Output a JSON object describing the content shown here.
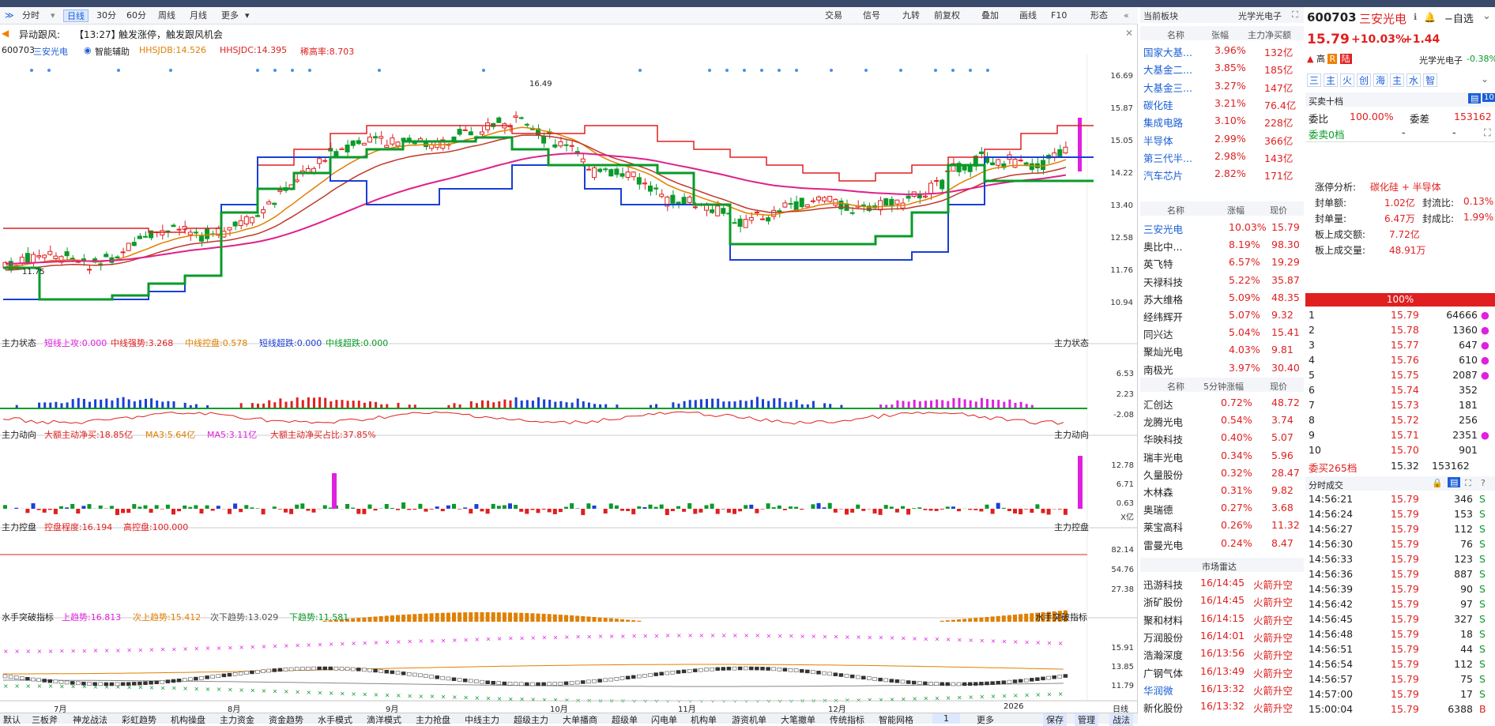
{
  "toolbar": {
    "left_items": [
      "分时",
      "日线",
      "30分",
      "60分",
      "周线",
      "月线",
      "更多"
    ],
    "active_item": "日线",
    "right_items": [
      "交易",
      "信号",
      "九转",
      "前复权",
      "叠加",
      "画线",
      "F10",
      "形态"
    ]
  },
  "alert": {
    "label": "异动跟风:",
    "time": "【13:27】",
    "text": "触发涨停，触发跟风机会"
  },
  "main_legend": {
    "code": "600703",
    "name": "三安光电",
    "assist": "智能辅助",
    "hhsjdb": "HHSJDB:14.526",
    "hhsjdc": "HHSJDC:14.395",
    "yushang": "稀高率:8.703"
  },
  "price_axis": [
    "16.69",
    "15.87",
    "15.05",
    "14.22",
    "13.40",
    "12.58",
    "11.76",
    "10.94"
  ],
  "price_marks": {
    "high": "16.49",
    "low": "11.75"
  },
  "panel_zhuli_state": {
    "title": "主力状态",
    "items": [
      "短线上攻:0.000",
      "中线强势:3.268",
      "中线控盘:0.578",
      "短线超跌:0.000",
      "中线超跌:0.000"
    ],
    "right": "主力状态",
    "axis": [
      "6.53",
      "2.23",
      "-2.08"
    ]
  },
  "panel_zhuli_dongxiang": {
    "title": "主力动向",
    "items": [
      "大额主动净买:18.85亿",
      "MA3:5.64亿",
      "MA5:3.11亿",
      "大额主动净买占比:37.85%"
    ],
    "right": "主力动向",
    "axis": [
      "12.78",
      "6.71",
      "0.63"
    ],
    "unit": "X亿"
  },
  "panel_zhuli_kongpan": {
    "title": "主力控盘",
    "items": [
      "控盘程度:16.194",
      "高控盘:100.000"
    ],
    "right": "主力控盘",
    "axis": [
      "82.14",
      "54.76",
      "27.38"
    ]
  },
  "panel_shuishou": {
    "title": "水手突破指标",
    "items": [
      "上趋势:16.813",
      "次上趋势:15.412",
      "次下趋势:13.029",
      "下趋势:11.581"
    ],
    "right": "水手突破指标",
    "axis": [
      "15.91",
      "13.85",
      "11.79"
    ]
  },
  "x_axis": [
    "7月",
    "8月",
    "9月",
    "10月",
    "11月",
    "12月",
    "2026"
  ],
  "x_right": "日线",
  "bottom_tabs": [
    "默认",
    "三板斧",
    "神龙战法",
    "彩虹趋势",
    "机构操盘",
    "主力资金",
    "资金趋势",
    "水手模式",
    "滴洋模式",
    "主力抢盘",
    "中线主力",
    "超级主力",
    "大单播商",
    "超级单",
    "闪电单",
    "机构单",
    "游资机单",
    "大笔撤单",
    "传统指标",
    "智能网格",
    "1",
    "更多",
    "保存",
    "管理",
    "战法"
  ],
  "sector": {
    "title": "当前板块",
    "current": "光学光电子",
    "headers": [
      "名称",
      "张幅",
      "主力净买额"
    ],
    "rows": [
      {
        "name": "国家大基...",
        "pct": "3.96%",
        "amt": "132亿"
      },
      {
        "name": "大基金二...",
        "pct": "3.85%",
        "amt": "185亿"
      },
      {
        "name": "大基金三...",
        "pct": "3.27%",
        "amt": "147亿"
      },
      {
        "name": "碳化硅",
        "pct": "3.21%",
        "amt": "76.4亿"
      },
      {
        "name": "集成电路",
        "pct": "3.10%",
        "amt": "228亿"
      },
      {
        "name": "半导体",
        "pct": "2.99%",
        "amt": "366亿"
      },
      {
        "name": "第三代半...",
        "pct": "2.98%",
        "amt": "143亿"
      },
      {
        "name": "汽车芯片",
        "pct": "2.82%",
        "amt": "171亿"
      }
    ]
  },
  "peers": {
    "headers": [
      "名称",
      "涨幅",
      "现价"
    ],
    "rows": [
      {
        "name": "三安光电",
        "pct": "10.03%",
        "price": "15.79"
      },
      {
        "name": "奥比中...",
        "pct": "8.19%",
        "price": "98.30"
      },
      {
        "name": "英飞特",
        "pct": "6.57%",
        "price": "19.29"
      },
      {
        "name": "天禄科技",
        "pct": "5.22%",
        "price": "35.87"
      },
      {
        "name": "苏大维格",
        "pct": "5.09%",
        "price": "48.35"
      },
      {
        "name": "经纬辉开",
        "pct": "5.07%",
        "price": "9.32"
      },
      {
        "name": "同兴达",
        "pct": "5.04%",
        "price": "15.41"
      },
      {
        "name": "聚灿光电",
        "pct": "4.03%",
        "price": "9.81"
      },
      {
        "name": "南极光",
        "pct": "3.97%",
        "price": "30.40"
      }
    ]
  },
  "fast": {
    "headers": [
      "名称",
      "5分钟涨幅",
      "现价"
    ],
    "rows": [
      {
        "name": "汇创达",
        "pct": "0.72%",
        "price": "48.72"
      },
      {
        "name": "龙腾光电",
        "pct": "0.54%",
        "price": "3.74"
      },
      {
        "name": "华映科技",
        "pct": "0.40%",
        "price": "5.07"
      },
      {
        "name": "瑞丰光电",
        "pct": "0.34%",
        "price": "5.96"
      },
      {
        "name": "久量股份",
        "pct": "0.32%",
        "price": "28.47"
      },
      {
        "name": "木林森",
        "pct": "0.31%",
        "price": "9.82"
      },
      {
        "name": "奥瑞德",
        "pct": "0.27%",
        "price": "3.68"
      },
      {
        "name": "莱宝高科",
        "pct": "0.26%",
        "price": "11.32"
      },
      {
        "name": "雷曼光电",
        "pct": "0.24%",
        "price": "8.47"
      }
    ]
  },
  "radar": {
    "title": "市场雷达",
    "rows": [
      {
        "name": "迅游科技",
        "time": "16/14:45",
        "event": "火箭升空"
      },
      {
        "name": "浙矿股份",
        "time": "16/14:45",
        "event": "火箭升空"
      },
      {
        "name": "聚和材料",
        "time": "16/14:15",
        "event": "火箭升空"
      },
      {
        "name": "万润股份",
        "time": "16/14:01",
        "event": "火箭升空"
      },
      {
        "name": "浩瀚深度",
        "time": "16/13:56",
        "event": "火箭升空"
      },
      {
        "name": "广钢气体",
        "time": "16/13:49",
        "event": "火箭升空"
      },
      {
        "name": "华润微",
        "time": "16/13:32",
        "event": "火箭升空"
      },
      {
        "name": "新化股份",
        "time": "16/13:32",
        "event": "火箭升空"
      }
    ]
  },
  "quote": {
    "code": "600703",
    "name": "三安光电",
    "watch": "自选",
    "price": "15.79",
    "pct": "+10.03%",
    "chg": "+1.44",
    "tags": [
      "高",
      "R",
      "陆"
    ],
    "sector": "光学光电子",
    "sector_pct": "-0.38%",
    "icons": [
      "三",
      "主",
      "火",
      "创",
      "海",
      "主",
      "水",
      "智"
    ],
    "book_title": "买卖十档",
    "weibi_label": "委比",
    "weibi": "100.00%",
    "weicha_label": "委差",
    "weicha": "153162",
    "sell_label": "委卖0档",
    "sell_dash": [
      "-",
      "-"
    ],
    "analysis_label": "涨停分析:",
    "analysis_val": "碳化硅 + 半导体",
    "fengdan_label": "封单额:",
    "fengdan": "1.02亿",
    "fengliu_label": "封流比:",
    "fengliu": "0.13%",
    "fengliang_label": "封单量:",
    "fengliang": "6.47万",
    "fengcheng_label": "封成比:",
    "fengcheng": "1.99%",
    "bancj_label": "板上成交额:",
    "bancj": "7.72亿",
    "banl_label": "板上成交量:",
    "banl": "48.91万",
    "bar_pct": "100%",
    "bids": [
      {
        "lv": "1",
        "p": "15.79",
        "v": "64666"
      },
      {
        "lv": "2",
        "p": "15.78",
        "v": "1360"
      },
      {
        "lv": "3",
        "p": "15.77",
        "v": "647"
      },
      {
        "lv": "4",
        "p": "15.76",
        "v": "610"
      },
      {
        "lv": "5",
        "p": "15.75",
        "v": "2087"
      },
      {
        "lv": "6",
        "p": "15.74",
        "v": "352"
      },
      {
        "lv": "7",
        "p": "15.73",
        "v": "181"
      },
      {
        "lv": "8",
        "p": "15.72",
        "v": "256"
      },
      {
        "lv": "9",
        "p": "15.71",
        "v": "2351"
      },
      {
        "lv": "10",
        "p": "15.70",
        "v": "901"
      }
    ],
    "buy_total_label": "委买265档",
    "buy_total_p": "15.32",
    "buy_total_v": "153162",
    "ticks_title": "分时成交",
    "ticks": [
      {
        "t": "14:56:21",
        "p": "15.79",
        "v": "346",
        "s": "S"
      },
      {
        "t": "14:56:24",
        "p": "15.79",
        "v": "153",
        "s": "S"
      },
      {
        "t": "14:56:27",
        "p": "15.79",
        "v": "112",
        "s": "S"
      },
      {
        "t": "14:56:30",
        "p": "15.79",
        "v": "76",
        "s": "S"
      },
      {
        "t": "14:56:33",
        "p": "15.79",
        "v": "123",
        "s": "S"
      },
      {
        "t": "14:56:36",
        "p": "15.79",
        "v": "887",
        "s": "S"
      },
      {
        "t": "14:56:39",
        "p": "15.79",
        "v": "90",
        "s": "S"
      },
      {
        "t": "14:56:42",
        "p": "15.79",
        "v": "97",
        "s": "S"
      },
      {
        "t": "14:56:45",
        "p": "15.79",
        "v": "327",
        "s": "S"
      },
      {
        "t": "14:56:48",
        "p": "15.79",
        "v": "18",
        "s": "S"
      },
      {
        "t": "14:56:51",
        "p": "15.79",
        "v": "44",
        "s": "S"
      },
      {
        "t": "14:56:54",
        "p": "15.79",
        "v": "112",
        "s": "S"
      },
      {
        "t": "14:56:57",
        "p": "15.79",
        "v": "75",
        "s": "S"
      },
      {
        "t": "14:57:00",
        "p": "15.79",
        "v": "17",
        "s": "S"
      },
      {
        "t": "15:00:04",
        "p": "15.79",
        "v": "6388",
        "s": "B"
      }
    ]
  }
}
